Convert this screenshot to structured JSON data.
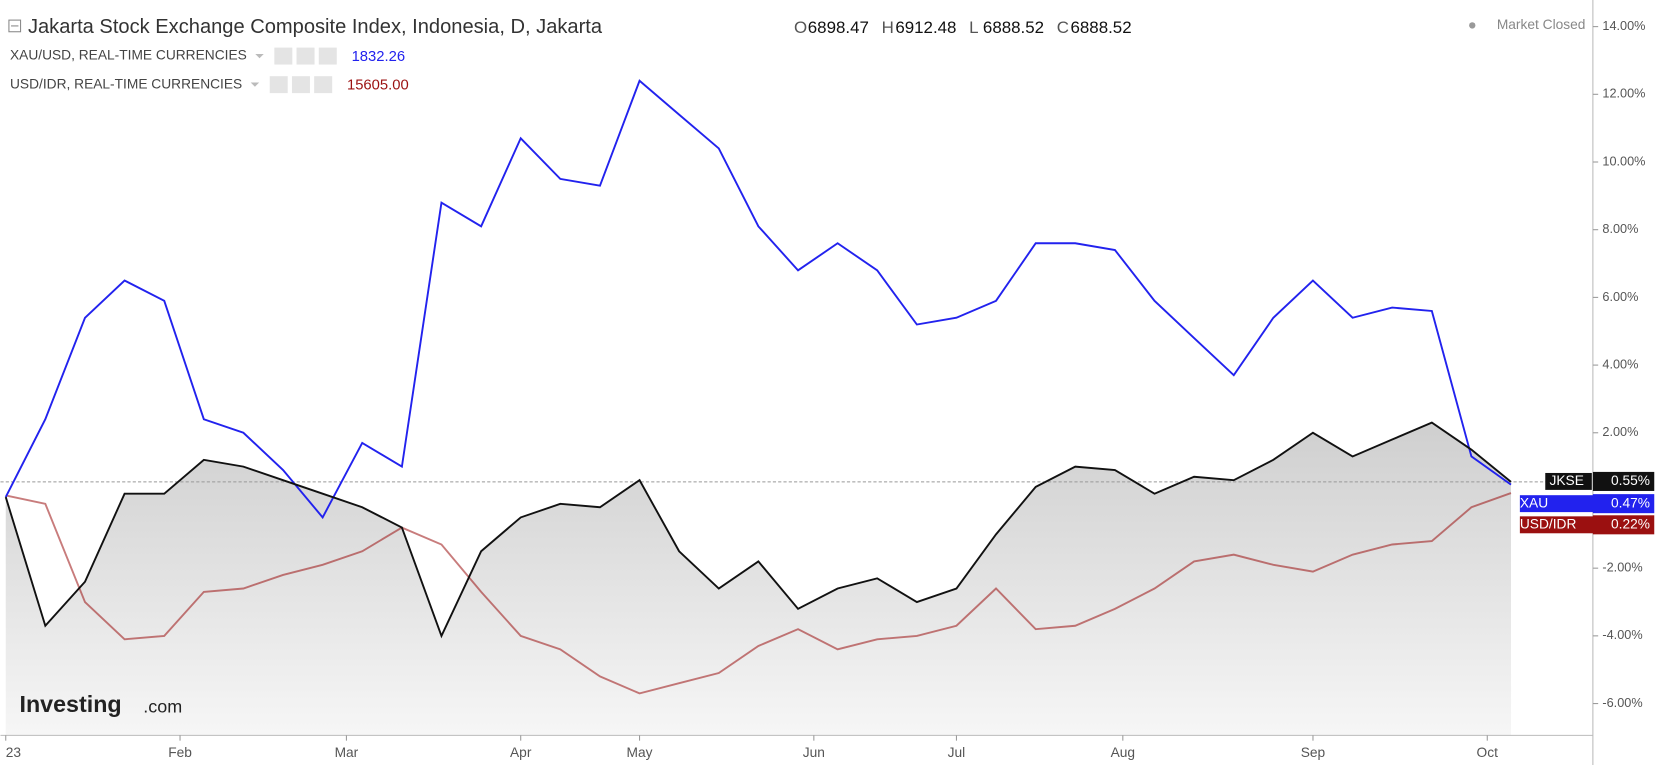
{
  "chart_data": {
    "type": "line",
    "title": "Jakarta Stock Exchange Composite Index, Indonesia, D, Jakarta",
    "ohlc": [
      {
        "label": "O",
        "value": "6898.47"
      },
      {
        "label": "H",
        "value": "6912.48"
      },
      {
        "label": "L",
        "value": "6888.52"
      },
      {
        "label": "C",
        "value": "6888.52"
      }
    ],
    "status": "Market Closed",
    "legend": [
      {
        "label": "XAU/USD, REAL-TIME CURRENCIES",
        "value": "1832.26",
        "color": "#2222ee"
      },
      {
        "label": "USD/IDR, REAL-TIME CURRENCIES",
        "value": "15605.00",
        "color": "#9b1010"
      }
    ],
    "logo": {
      "brand": "Investing",
      "suffix": ".com"
    },
    "x": [
      0,
      5,
      10,
      15,
      20,
      25,
      30,
      35,
      40,
      45,
      50,
      55,
      60,
      65,
      70,
      75,
      80,
      85,
      90,
      95,
      100,
      105,
      110,
      115,
      120,
      125,
      130,
      135,
      140,
      145,
      150,
      155,
      160,
      165,
      170,
      175,
      180,
      185,
      190
    ],
    "xlim": [
      0,
      201
    ],
    "xticks": [
      {
        "value": 0,
        "label": "23"
      },
      {
        "value": 22,
        "label": "Feb"
      },
      {
        "value": 43,
        "label": "Mar"
      },
      {
        "value": 65,
        "label": "Apr"
      },
      {
        "value": 80,
        "label": "May"
      },
      {
        "value": 102,
        "label": "Jun"
      },
      {
        "value": 120,
        "label": "Jul"
      },
      {
        "value": 141,
        "label": "Aug"
      },
      {
        "value": 165,
        "label": "Sep"
      },
      {
        "value": 187,
        "label": "Oct"
      }
    ],
    "ylim": [
      -6.94,
      14.63
    ],
    "yticks": [
      {
        "value": 14,
        "label": "14.00%"
      },
      {
        "value": 12,
        "label": "12.00%"
      },
      {
        "value": 10,
        "label": "10.00%"
      },
      {
        "value": 8,
        "label": "8.00%"
      },
      {
        "value": 6,
        "label": "6.00%"
      },
      {
        "value": 4,
        "label": "4.00%"
      },
      {
        "value": 2,
        "label": "2.00%"
      },
      {
        "value": -2,
        "label": "-2.00%"
      },
      {
        "value": -4,
        "label": "-4.00%"
      },
      {
        "value": -6,
        "label": "-6.00%"
      }
    ],
    "series": [
      {
        "name": "JKSE",
        "color": "#111111",
        "area": true,
        "end_label": "0.55%",
        "values": [
          0.1,
          -3.7,
          -2.4,
          0.2,
          0.2,
          1.2,
          1.0,
          0.6,
          0.2,
          -0.2,
          -0.8,
          -4.0,
          -1.5,
          -0.5,
          -0.1,
          -0.2,
          0.6,
          -1.5,
          -2.6,
          -1.8,
          -3.2,
          -2.6,
          -2.3,
          -3.0,
          -2.6,
          -1.0,
          0.4,
          1.0,
          0.9,
          0.2,
          0.7,
          0.6,
          1.2,
          2.0,
          1.3,
          1.8,
          2.3,
          1.5,
          0.55
        ]
      },
      {
        "name": "XAU",
        "color": "#2222ee",
        "end_label": "0.47%",
        "values": [
          0.1,
          2.4,
          5.4,
          6.5,
          5.9,
          2.4,
          2.0,
          0.9,
          -0.5,
          1.7,
          1.0,
          8.8,
          8.1,
          10.7,
          9.5,
          9.3,
          12.4,
          11.4,
          10.4,
          8.1,
          6.8,
          7.6,
          6.8,
          5.2,
          5.4,
          5.9,
          7.6,
          7.6,
          7.4,
          5.9,
          4.8,
          3.7,
          5.4,
          6.5,
          5.4,
          5.7,
          5.6,
          1.3,
          0.47
        ]
      },
      {
        "name": "USD/IDR",
        "color": "#9b1010",
        "end_label": "0.22%",
        "values": [
          0.15,
          -0.1,
          -3.0,
          -4.1,
          -4.0,
          -2.7,
          -2.6,
          -2.2,
          -1.9,
          -1.5,
          -0.8,
          -1.3,
          -2.7,
          -4.0,
          -4.4,
          -5.2,
          -5.7,
          -5.4,
          -5.1,
          -4.3,
          -3.8,
          -4.4,
          -4.1,
          -4.0,
          -3.7,
          -2.6,
          -3.8,
          -3.7,
          -3.2,
          -2.6,
          -1.8,
          -1.6,
          -1.9,
          -2.1,
          -1.6,
          -1.3,
          -1.2,
          -0.2,
          0.22
        ]
      }
    ]
  }
}
